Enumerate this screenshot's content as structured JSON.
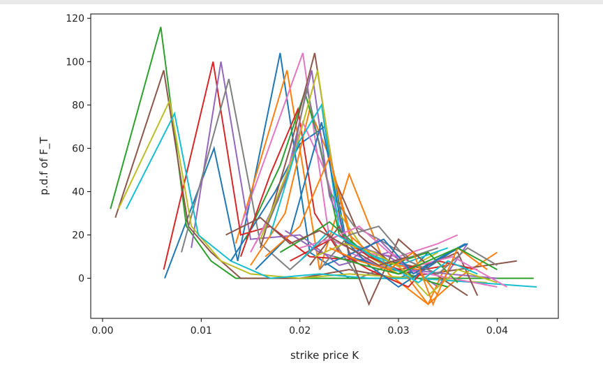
{
  "chart_data": {
    "type": "line",
    "title": "",
    "xlabel": "strike price K",
    "ylabel": "p.d.f of F_T",
    "xlim": [
      -0.0012,
      0.0462
    ],
    "ylim": [
      -18.5,
      122
    ],
    "xticks": [
      0.0,
      0.01,
      0.02,
      0.03,
      0.04
    ],
    "xtick_labels": [
      "0.00",
      "0.01",
      "0.02",
      "0.03",
      "0.04"
    ],
    "yticks": [
      0,
      20,
      40,
      60,
      80,
      100,
      120
    ],
    "ytick_labels": [
      "0",
      "20",
      "40",
      "60",
      "80",
      "100",
      "120"
    ],
    "grid": false,
    "legend": "none",
    "series": [
      {
        "color": "#1f77b4",
        "x": [
          0.0063,
          0.0113,
          0.0137,
          0.018,
          0.021,
          0.025,
          0.03,
          0.032,
          0.0368
        ],
        "y": [
          0,
          60,
          8,
          104,
          12,
          0,
          0,
          4,
          16
        ]
      },
      {
        "color": "#ff7f0e",
        "x": [
          0.0135,
          0.0187,
          0.022,
          0.025,
          0.029,
          0.033,
          0.036,
          0.04
        ],
        "y": [
          16,
          96,
          4,
          48,
          2,
          -12,
          0,
          12
        ]
      },
      {
        "color": "#2ca02c",
        "x": [
          0.0008,
          0.0059,
          0.0085,
          0.011,
          0.0135,
          0.02,
          0.03,
          0.0437
        ],
        "y": [
          32,
          116,
          24,
          8,
          0,
          0,
          0,
          0
        ]
      },
      {
        "color": "#d62728",
        "x": [
          0.0062,
          0.0112,
          0.014,
          0.017,
          0.021,
          0.027,
          0.03,
          0.035
        ],
        "y": [
          4,
          100,
          20,
          24,
          10,
          8,
          2,
          6
        ]
      },
      {
        "color": "#9467bd",
        "x": [
          0.009,
          0.012,
          0.015,
          0.02,
          0.024,
          0.029,
          0.034,
          0.037
        ],
        "y": [
          14,
          100,
          18,
          20,
          6,
          12,
          -4,
          16
        ]
      },
      {
        "color": "#8c564b",
        "x": [
          0.0013,
          0.0062,
          0.0087,
          0.011,
          0.014,
          0.02,
          0.025,
          0.03,
          0.042
        ],
        "y": [
          28,
          96,
          24,
          12,
          0,
          0,
          4,
          0,
          8
        ]
      },
      {
        "color": "#e377c2",
        "x": [
          0.014,
          0.0203,
          0.023,
          0.026,
          0.03,
          0.034,
          0.036
        ],
        "y": [
          24,
          104,
          18,
          12,
          10,
          16,
          20
        ]
      },
      {
        "color": "#7f7f7f",
        "x": [
          0.008,
          0.0128,
          0.016,
          0.019,
          0.023,
          0.026,
          0.03,
          0.034
        ],
        "y": [
          12,
          92,
          16,
          4,
          20,
          0,
          8,
          14
        ]
      },
      {
        "color": "#bcbd22",
        "x": [
          0.0016,
          0.0068,
          0.009,
          0.012,
          0.015,
          0.02,
          0.025,
          0.032,
          0.039
        ],
        "y": [
          32,
          82,
          24,
          8,
          2,
          0,
          2,
          0,
          -2
        ]
      },
      {
        "color": "#17becf",
        "x": [
          0.0024,
          0.0073,
          0.0097,
          0.013,
          0.017,
          0.022,
          0.027,
          0.032,
          0.044
        ],
        "y": [
          32,
          76,
          20,
          8,
          0,
          2,
          0,
          0,
          -4
        ]
      },
      {
        "color": "#1f77b4",
        "x": [
          0.013,
          0.0175,
          0.02,
          0.0225,
          0.025,
          0.028,
          0.031,
          0.033
        ],
        "y": [
          8,
          40,
          62,
          70,
          10,
          6,
          2,
          12
        ]
      },
      {
        "color": "#ff7f0e",
        "x": [
          0.015,
          0.0185,
          0.021,
          0.023,
          0.0255,
          0.03,
          0.033,
          0.035
        ],
        "y": [
          6,
          30,
          78,
          56,
          14,
          6,
          -12,
          8
        ]
      },
      {
        "color": "#2ca02c",
        "x": [
          0.0145,
          0.018,
          0.0205,
          0.022,
          0.024,
          0.028,
          0.032,
          0.035
        ],
        "y": [
          18,
          52,
          86,
          62,
          20,
          8,
          0,
          -4
        ]
      },
      {
        "color": "#d62728",
        "x": [
          0.014,
          0.017,
          0.0198,
          0.0215,
          0.024,
          0.027,
          0.031,
          0.033
        ],
        "y": [
          10,
          48,
          78,
          30,
          12,
          4,
          -4,
          6
        ]
      },
      {
        "color": "#9467bd",
        "x": [
          0.0155,
          0.0185,
          0.0212,
          0.023,
          0.025,
          0.029,
          0.032
        ],
        "y": [
          16,
          44,
          96,
          38,
          16,
          10,
          2
        ]
      },
      {
        "color": "#8c564b",
        "x": [
          0.016,
          0.019,
          0.0215,
          0.0235,
          0.026,
          0.029,
          0.033,
          0.037
        ],
        "y": [
          14,
          60,
          104,
          46,
          20,
          8,
          4,
          -8
        ]
      },
      {
        "color": "#e377c2",
        "x": [
          0.015,
          0.0178,
          0.0203,
          0.0225,
          0.025,
          0.028,
          0.033,
          0.04
        ],
        "y": [
          12,
          36,
          72,
          50,
          12,
          6,
          2,
          -4
        ]
      },
      {
        "color": "#7f7f7f",
        "x": [
          0.0165,
          0.019,
          0.0207,
          0.023,
          0.0255,
          0.028,
          0.031
        ],
        "y": [
          22,
          50,
          88,
          40,
          24,
          18,
          10
        ]
      },
      {
        "color": "#bcbd22",
        "x": [
          0.016,
          0.0195,
          0.0218,
          0.024,
          0.027,
          0.03,
          0.034
        ],
        "y": [
          18,
          58,
          96,
          30,
          10,
          2,
          12
        ]
      },
      {
        "color": "#17becf",
        "x": [
          0.017,
          0.0198,
          0.0222,
          0.024,
          0.0265,
          0.03,
          0.035
        ],
        "y": [
          20,
          62,
          80,
          22,
          12,
          6,
          14
        ]
      },
      {
        "color": "#1f77b4",
        "x": [
          0.0155,
          0.019,
          0.0222,
          0.0245,
          0.027,
          0.03,
          0.036
        ],
        "y": [
          4,
          20,
          72,
          18,
          6,
          -4,
          14
        ]
      },
      {
        "color": "#ff7f0e",
        "x": [
          0.0165,
          0.02,
          0.023,
          0.025,
          0.028,
          0.032,
          0.034
        ],
        "y": [
          10,
          24,
          56,
          20,
          8,
          4,
          -8
        ]
      },
      {
        "color": "#2ca02c",
        "x": [
          0.018,
          0.021,
          0.023,
          0.026,
          0.029,
          0.033,
          0.036
        ],
        "y": [
          12,
          20,
          26,
          14,
          6,
          12,
          -2
        ]
      },
      {
        "color": "#d62728",
        "x": [
          0.019,
          0.0215,
          0.024,
          0.027,
          0.03,
          0.034,
          0.038
        ],
        "y": [
          8,
          14,
          20,
          10,
          4,
          8,
          4
        ]
      },
      {
        "color": "#9467bd",
        "x": [
          0.0185,
          0.022,
          0.025,
          0.028,
          0.031,
          0.035,
          0.04
        ],
        "y": [
          22,
          12,
          8,
          18,
          4,
          2,
          0
        ]
      },
      {
        "color": "#8c564b",
        "x": [
          0.021,
          0.024,
          0.027,
          0.03,
          0.033,
          0.036,
          0.038
        ],
        "y": [
          6,
          24,
          -12,
          18,
          6,
          12,
          -8
        ]
      },
      {
        "color": "#e377c2",
        "x": [
          0.02,
          0.023,
          0.026,
          0.029,
          0.032,
          0.0355,
          0.041
        ],
        "y": [
          14,
          18,
          24,
          12,
          6,
          10,
          -4
        ]
      },
      {
        "color": "#7f7f7f",
        "x": [
          0.022,
          0.025,
          0.028,
          0.031,
          0.034,
          0.037,
          0.04
        ],
        "y": [
          4,
          20,
          24,
          8,
          2,
          14,
          6
        ]
      },
      {
        "color": "#bcbd22",
        "x": [
          0.0215,
          0.0245,
          0.0275,
          0.0305,
          0.033,
          0.036,
          0.04
        ],
        "y": [
          10,
          16,
          12,
          4,
          -8,
          4,
          -2
        ]
      },
      {
        "color": "#17becf",
        "x": [
          0.02,
          0.023,
          0.026,
          0.029,
          0.032,
          0.035,
          0.038
        ],
        "y": [
          8,
          22,
          14,
          6,
          -2,
          8,
          2
        ]
      },
      {
        "color": "#1f77b4",
        "x": [
          0.0225,
          0.0255,
          0.0285,
          0.0315,
          0.0345,
          0.037
        ],
        "y": [
          6,
          12,
          18,
          2,
          10,
          16
        ]
      },
      {
        "color": "#ff7f0e",
        "x": [
          0.023,
          0.026,
          0.029,
          0.0315,
          0.0335,
          0.036,
          0.039
        ],
        "y": [
          14,
          8,
          4,
          12,
          -12,
          14,
          4
        ]
      },
      {
        "color": "#2ca02c",
        "x": [
          0.0235,
          0.0265,
          0.03,
          0.033,
          0.036,
          0.04
        ],
        "y": [
          10,
          6,
          2,
          8,
          14,
          4
        ]
      },
      {
        "color": "#8c564b",
        "x": [
          0.0125,
          0.016,
          0.019,
          0.022,
          0.025,
          0.028,
          0.031
        ],
        "y": [
          20,
          28,
          16,
          22,
          14,
          6,
          10
        ]
      }
    ]
  }
}
